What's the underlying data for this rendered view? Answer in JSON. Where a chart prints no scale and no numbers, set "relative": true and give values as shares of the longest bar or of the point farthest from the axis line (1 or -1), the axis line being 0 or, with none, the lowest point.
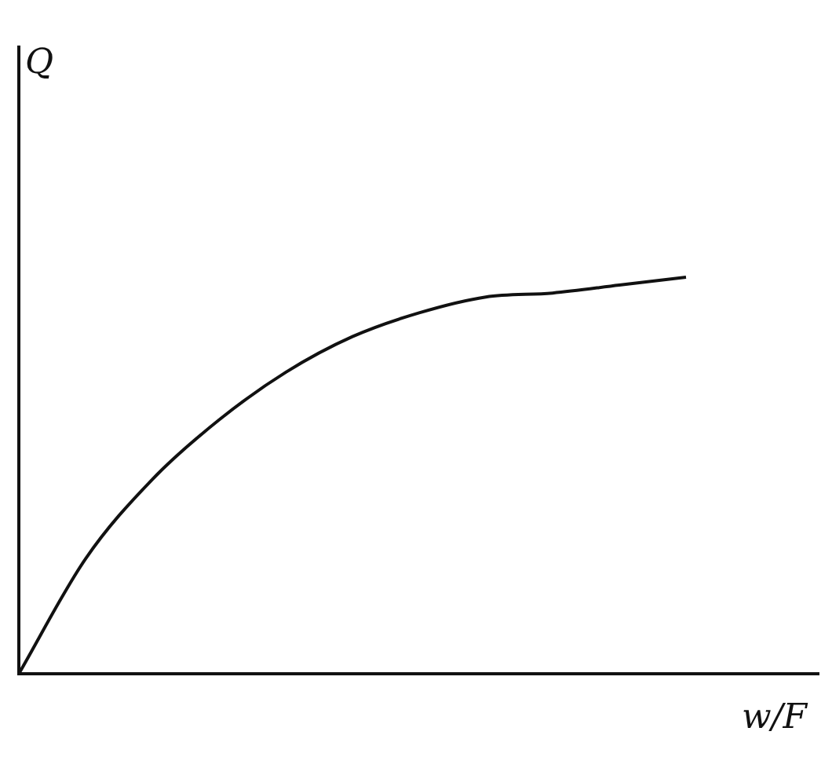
{
  "chart_data": {
    "type": "line",
    "relative": true,
    "annotations": [
      "Q"
    ],
    "xlabel": "w/F",
    "categories": [
      null,
      null,
      null,
      null,
      null,
      null,
      null,
      null,
      null,
      null,
      null,
      null,
      null
    ],
    "series": [
      {
        "color": "#111111",
        "values": [
          0,
          0.29,
          0.49,
          0.64,
          0.76,
          0.85,
          0.91,
          0.95,
          0.96,
          0.98,
          1,
          null,
          null
        ]
      }
    ],
    "grid": false,
    "legend": false,
    "marker": "none",
    "line_style": "solid"
  }
}
